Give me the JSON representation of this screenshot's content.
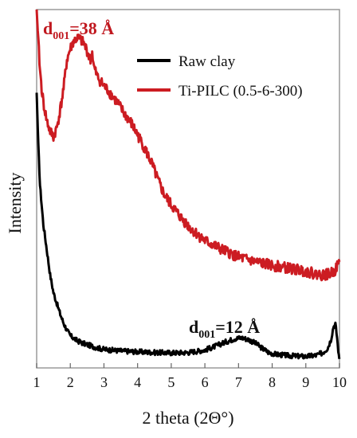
{
  "chart_data": {
    "type": "line",
    "title": "",
    "xlabel": "2 theta (2Θ°)",
    "ylabel": "Intensity",
    "xlim": [
      1,
      10
    ],
    "ylim": [
      0,
      100
    ],
    "x_ticks": [
      "1",
      "2",
      "3",
      "4",
      "5",
      "6",
      "7",
      "8",
      "9",
      "10"
    ],
    "y_ticks_shown": false,
    "grid": false,
    "legend_position": "top-right",
    "series": [
      {
        "name": "Raw clay",
        "color": "#000000",
        "x": [
          1.0,
          1.05,
          1.1,
          1.2,
          1.3,
          1.4,
          1.5,
          1.6,
          1.7,
          1.8,
          1.9,
          2.0,
          2.2,
          2.4,
          2.6,
          2.8,
          3.0,
          3.3,
          3.6,
          4.0,
          4.5,
          5.0,
          5.5,
          6.0,
          6.3,
          6.6,
          6.9,
          7.1,
          7.3,
          7.5,
          7.7,
          7.9,
          8.1,
          8.4,
          8.7,
          9.0,
          9.3,
          9.5,
          9.65,
          9.75,
          9.82,
          9.88,
          9.93,
          9.98,
          10.0
        ],
        "y": [
          76.8,
          62,
          51,
          40,
          33,
          26,
          21,
          18,
          15,
          12.5,
          10.5,
          9,
          7.6,
          6.8,
          6.2,
          5.6,
          5.2,
          4.9,
          4.7,
          4.5,
          4.3,
          4.2,
          4.3,
          5.0,
          6.0,
          7.2,
          8.2,
          8.4,
          7.9,
          6.9,
          5.5,
          4.3,
          3.8,
          3.5,
          3.3,
          3.2,
          3.5,
          4.2,
          5.5,
          8.0,
          11.5,
          12.2,
          8.5,
          3.2,
          2.5
        ]
      },
      {
        "name": "Ti-PILC (0.5-6-300)",
        "color": "#cc1c22",
        "x": [
          1.0,
          1.05,
          1.1,
          1.15,
          1.2,
          1.3,
          1.4,
          1.5,
          1.6,
          1.7,
          1.8,
          1.9,
          2.0,
          2.1,
          2.2,
          2.3,
          2.4,
          2.5,
          2.6,
          2.65,
          2.7,
          2.8,
          2.9,
          3.0,
          3.2,
          3.4,
          3.6,
          3.8,
          4.0,
          4.2,
          4.4,
          4.6,
          4.8,
          5.0,
          5.3,
          5.6,
          6.0,
          6.5,
          7.0,
          7.5,
          8.0,
          8.5,
          9.0,
          9.3,
          9.5,
          9.7,
          9.85,
          10.0
        ],
        "y": [
          100,
          91,
          83,
          78,
          74,
          69,
          66,
          64.5,
          67,
          72,
          78,
          86,
          89,
          91.2,
          92,
          91.6,
          90.5,
          88.5,
          85.7,
          88,
          84,
          81.3,
          80,
          78.7,
          76.5,
          74,
          71,
          68.5,
          65,
          61.5,
          57.5,
          52.5,
          48.2,
          45.5,
          41.8,
          38.7,
          35.5,
          33,
          30.9,
          29.6,
          28.6,
          27.8,
          27.0,
          26.2,
          25.9,
          26.2,
          27.0,
          29.6
        ]
      }
    ],
    "annotations": [
      {
        "base": "d",
        "subscript": "001",
        "rest": "=38 Å",
        "color": "#c0181f"
      },
      {
        "base": "d",
        "subscript": "001",
        "rest": "=12 Å",
        "color": "#111111"
      }
    ]
  }
}
